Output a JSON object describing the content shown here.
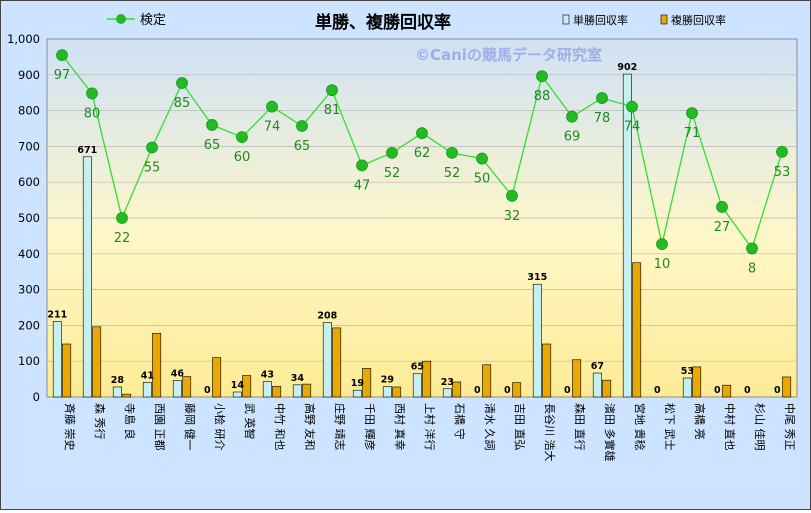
{
  "chart_data": {
    "type": "bar",
    "title": "単勝、複勝回収率",
    "watermark": "©Caniの競馬データ研究室",
    "ylim": [
      0,
      1000
    ],
    "yticks": [
      0,
      100,
      200,
      300,
      400,
      500,
      600,
      700,
      800,
      900,
      "1,000"
    ],
    "grid": true,
    "legend": "top",
    "categories": [
      "斉藤 崇史",
      "森 秀行",
      "寺島 良",
      "西園 正都",
      "藤岡 健一",
      "小桧 研介",
      "武 英智",
      "中竹 和也",
      "高野 友和",
      "庄野 靖志",
      "千田 輝彦",
      "西村 真幸",
      "上村 洋行",
      "石橋 守",
      "清水 久詞",
      "吉田 直弘",
      "長谷川 浩大",
      "森田 直行",
      "濱田 多實雄",
      "宮地 貴稔",
      "松下 武士",
      "高橋 亮",
      "中村 直也",
      "杉山 佳明",
      "中尾 秀正"
    ],
    "series": [
      {
        "name": "単勝回収率",
        "type": "bar",
        "color": "#c6f0f0",
        "values": [
          211,
          671,
          28,
          41,
          46,
          0,
          14,
          43,
          34,
          208,
          19,
          29,
          65,
          23,
          0,
          0,
          315,
          0,
          67,
          902,
          0,
          53,
          0,
          0,
          0
        ],
        "labels": [
          "211",
          "671",
          "28",
          "41",
          "46",
          "0",
          "14",
          "43",
          "34",
          "208",
          "19",
          "29",
          "65",
          "23",
          "0",
          "0",
          "315",
          "0",
          "67",
          "902",
          "0",
          "53",
          "0",
          "0",
          "0"
        ]
      },
      {
        "name": "複勝回収率",
        "type": "bar",
        "color": "#e8a800",
        "values": [
          148,
          196,
          8,
          178,
          57,
          110,
          60,
          30,
          36,
          193,
          80,
          28,
          100,
          42,
          90,
          40,
          148,
          104,
          47,
          375,
          0,
          84,
          33,
          0,
          56
        ]
      },
      {
        "name": "検定",
        "type": "line",
        "color": "#33dd33",
        "dot_color": "#22bb22",
        "label_color": "#1f8a1f",
        "values": [
          955,
          848,
          500,
          697,
          877,
          760,
          726,
          811,
          757,
          857,
          647,
          682,
          737,
          682,
          666,
          562,
          896,
          783,
          835,
          811,
          427,
          793,
          531,
          415,
          685
        ],
        "labels": [
          "97",
          "80",
          "22",
          "55",
          "85",
          "65",
          "60",
          "74",
          "65",
          "81",
          "47",
          "52",
          "62",
          "52",
          "50",
          "32",
          "88",
          "69",
          "78",
          "74",
          "10",
          "71",
          "27",
          "8",
          "53"
        ]
      }
    ]
  }
}
